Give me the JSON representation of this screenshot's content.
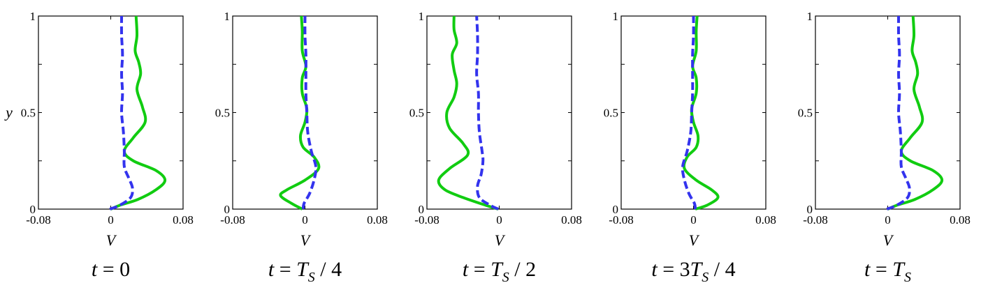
{
  "chart_data": [
    {
      "type": "line",
      "caption": {
        "t": "t",
        "eq": " = ",
        "rest": "0",
        "T": "",
        "sub": "",
        "tail": ""
      },
      "xlabel": "V",
      "ylabel": "y",
      "xlim": [
        -0.08,
        0.08
      ],
      "ylim": [
        0,
        1
      ],
      "xticklabels": [
        "-0.08",
        "0",
        "0.08"
      ],
      "yticklabels": [
        "0",
        "0.5",
        "1"
      ],
      "series": [
        {
          "color": "#11cc11",
          "style": "solid",
          "points": [
            [
              0,
              0
            ],
            [
              0.01,
              0.02
            ],
            [
              0.03,
              0.05
            ],
            [
              0.05,
              0.1
            ],
            [
              0.06,
              0.15
            ],
            [
              0.05,
              0.2
            ],
            [
              0.025,
              0.25
            ],
            [
              0.015,
              0.3
            ],
            [
              0.025,
              0.37
            ],
            [
              0.038,
              0.45
            ],
            [
              0.035,
              0.53
            ],
            [
              0.029,
              0.62
            ],
            [
              0.033,
              0.7
            ],
            [
              0.031,
              0.76
            ],
            [
              0.027,
              0.82
            ],
            [
              0.029,
              0.9
            ],
            [
              0.028,
              1.0
            ]
          ]
        },
        {
          "color": "#3333ee",
          "style": "dashed",
          "points": [
            [
              -0.001,
              0
            ],
            [
              0.01,
              0.02
            ],
            [
              0.022,
              0.06
            ],
            [
              0.024,
              0.11
            ],
            [
              0.02,
              0.16
            ],
            [
              0.015,
              0.22
            ],
            [
              0.015,
              0.3
            ],
            [
              0.014,
              0.4
            ],
            [
              0.012,
              0.5
            ],
            [
              0.013,
              0.6
            ],
            [
              0.012,
              0.7
            ],
            [
              0.013,
              0.8
            ],
            [
              0.012,
              0.9
            ],
            [
              0.012,
              1.0
            ]
          ]
        }
      ]
    },
    {
      "type": "line",
      "caption": {
        "t": "t",
        "eq": " = ",
        "rest": "",
        "T": "T",
        "sub": "S",
        "tail": " / 4"
      },
      "xlabel": "V",
      "ylabel": "",
      "xlim": [
        -0.08,
        0.08
      ],
      "ylim": [
        0,
        1
      ],
      "xticklabels": [
        "-0.08",
        "0",
        "0.08"
      ],
      "yticklabels": [
        "0",
        "0.5",
        "1"
      ],
      "series": [
        {
          "color": "#11cc11",
          "style": "solid",
          "points": [
            [
              -0.003,
              0
            ],
            [
              -0.015,
              0.03
            ],
            [
              -0.027,
              0.07
            ],
            [
              -0.02,
              0.1
            ],
            [
              0.0,
              0.15
            ],
            [
              0.015,
              0.21
            ],
            [
              0.01,
              0.27
            ],
            [
              -0.002,
              0.32
            ],
            [
              -0.005,
              0.38
            ],
            [
              0.0,
              0.45
            ],
            [
              0.002,
              0.52
            ],
            [
              -0.003,
              0.6
            ],
            [
              -0.003,
              0.68
            ],
            [
              0.001,
              0.74
            ],
            [
              -0.003,
              0.82
            ],
            [
              -0.003,
              0.92
            ],
            [
              -0.004,
              1.0
            ]
          ]
        },
        {
          "color": "#3333ee",
          "style": "dashed",
          "points": [
            [
              -0.002,
              0
            ],
            [
              -0.001,
              0.03
            ],
            [
              0.005,
              0.08
            ],
            [
              0.01,
              0.15
            ],
            [
              0.012,
              0.22
            ],
            [
              0.007,
              0.3
            ],
            [
              0.003,
              0.4
            ],
            [
              0.002,
              0.5
            ],
            [
              0.001,
              0.6
            ],
            [
              0.001,
              0.7
            ],
            [
              0.001,
              0.8
            ],
            [
              0.0,
              0.9
            ],
            [
              0.0,
              1.0
            ]
          ]
        }
      ]
    },
    {
      "type": "line",
      "caption": {
        "t": "t",
        "eq": " = ",
        "rest": "",
        "T": "T",
        "sub": "S",
        "tail": " / 2"
      },
      "xlabel": "V",
      "ylabel": "",
      "xlim": [
        -0.08,
        0.08
      ],
      "ylim": [
        0,
        1
      ],
      "xticklabels": [
        "-0.08",
        "0",
        "0.08"
      ],
      "yticklabels": [
        "0",
        "0.5",
        "1"
      ],
      "series": [
        {
          "color": "#11cc11",
          "style": "solid",
          "points": [
            [
              -0.001,
              0
            ],
            [
              -0.015,
              0.02
            ],
            [
              -0.04,
              0.06
            ],
            [
              -0.06,
              0.1
            ],
            [
              -0.067,
              0.15
            ],
            [
              -0.055,
              0.21
            ],
            [
              -0.035,
              0.28
            ],
            [
              -0.04,
              0.34
            ],
            [
              -0.055,
              0.42
            ],
            [
              -0.058,
              0.5
            ],
            [
              -0.05,
              0.58
            ],
            [
              -0.047,
              0.65
            ],
            [
              -0.05,
              0.72
            ],
            [
              -0.052,
              0.8
            ],
            [
              -0.047,
              0.86
            ],
            [
              -0.05,
              0.93
            ],
            [
              -0.05,
              1.0
            ]
          ]
        },
        {
          "color": "#3333ee",
          "style": "dashed",
          "points": [
            [
              -0.001,
              0
            ],
            [
              -0.01,
              0.02
            ],
            [
              -0.022,
              0.06
            ],
            [
              -0.024,
              0.12
            ],
            [
              -0.02,
              0.18
            ],
            [
              -0.018,
              0.25
            ],
            [
              -0.019,
              0.3
            ],
            [
              -0.022,
              0.4
            ],
            [
              -0.023,
              0.5
            ],
            [
              -0.023,
              0.6
            ],
            [
              -0.025,
              0.7
            ],
            [
              -0.024,
              0.8
            ],
            [
              -0.024,
              0.9
            ],
            [
              -0.025,
              1.0
            ]
          ]
        }
      ]
    },
    {
      "type": "line",
      "caption": {
        "t": "t",
        "eq": " = 3",
        "rest": "",
        "T": "T",
        "sub": "S",
        "tail": " / 4"
      },
      "xlabel": "V",
      "ylabel": "",
      "xlim": [
        -0.08,
        0.08
      ],
      "ylim": [
        0,
        1
      ],
      "xticklabels": [
        "-0.08",
        "0",
        "0.08"
      ],
      "yticklabels": [
        "0",
        "0.5",
        "1"
      ],
      "series": [
        {
          "color": "#11cc11",
          "style": "solid",
          "points": [
            [
              0.002,
              0
            ],
            [
              0.015,
              0.02
            ],
            [
              0.027,
              0.06
            ],
            [
              0.02,
              0.1
            ],
            [
              0.003,
              0.15
            ],
            [
              -0.01,
              0.21
            ],
            [
              -0.007,
              0.27
            ],
            [
              0.003,
              0.32
            ],
            [
              0.005,
              0.38
            ],
            [
              0.0,
              0.45
            ],
            [
              -0.002,
              0.52
            ],
            [
              0.003,
              0.6
            ],
            [
              0.003,
              0.68
            ],
            [
              -0.001,
              0.74
            ],
            [
              0.003,
              0.82
            ],
            [
              0.003,
              0.92
            ],
            [
              0.004,
              1.0
            ]
          ]
        },
        {
          "color": "#3333ee",
          "style": "dashed",
          "points": [
            [
              0.002,
              0
            ],
            [
              0.001,
              0.03
            ],
            [
              -0.005,
              0.08
            ],
            [
              -0.01,
              0.15
            ],
            [
              -0.012,
              0.22
            ],
            [
              -0.007,
              0.3
            ],
            [
              -0.003,
              0.4
            ],
            [
              -0.002,
              0.5
            ],
            [
              -0.001,
              0.6
            ],
            [
              -0.001,
              0.7
            ],
            [
              -0.001,
              0.8
            ],
            [
              0.0,
              0.9
            ],
            [
              0.0,
              1.0
            ]
          ]
        }
      ]
    },
    {
      "type": "line",
      "caption": {
        "t": "t",
        "eq": " = ",
        "rest": "",
        "T": "T",
        "sub": "S",
        "tail": ""
      },
      "xlabel": "V",
      "ylabel": "",
      "xlim": [
        -0.08,
        0.08
      ],
      "ylim": [
        0,
        1
      ],
      "xticklabels": [
        "-0.08",
        "0",
        "0.08"
      ],
      "yticklabels": [
        "0",
        "0.5",
        "1"
      ],
      "series": [
        {
          "color": "#11cc11",
          "style": "solid",
          "points": [
            [
              0,
              0
            ],
            [
              0.01,
              0.02
            ],
            [
              0.03,
              0.05
            ],
            [
              0.05,
              0.1
            ],
            [
              0.06,
              0.15
            ],
            [
              0.05,
              0.2
            ],
            [
              0.025,
              0.25
            ],
            [
              0.015,
              0.3
            ],
            [
              0.025,
              0.37
            ],
            [
              0.038,
              0.45
            ],
            [
              0.035,
              0.53
            ],
            [
              0.029,
              0.62
            ],
            [
              0.033,
              0.7
            ],
            [
              0.031,
              0.76
            ],
            [
              0.027,
              0.82
            ],
            [
              0.029,
              0.9
            ],
            [
              0.028,
              1.0
            ]
          ]
        },
        {
          "color": "#3333ee",
          "style": "dashed",
          "points": [
            [
              -0.001,
              0
            ],
            [
              0.01,
              0.02
            ],
            [
              0.022,
              0.06
            ],
            [
              0.024,
              0.11
            ],
            [
              0.02,
              0.16
            ],
            [
              0.015,
              0.22
            ],
            [
              0.015,
              0.3
            ],
            [
              0.014,
              0.4
            ],
            [
              0.012,
              0.5
            ],
            [
              0.013,
              0.6
            ],
            [
              0.012,
              0.7
            ],
            [
              0.013,
              0.8
            ],
            [
              0.012,
              0.9
            ],
            [
              0.012,
              1.0
            ]
          ]
        }
      ]
    }
  ]
}
